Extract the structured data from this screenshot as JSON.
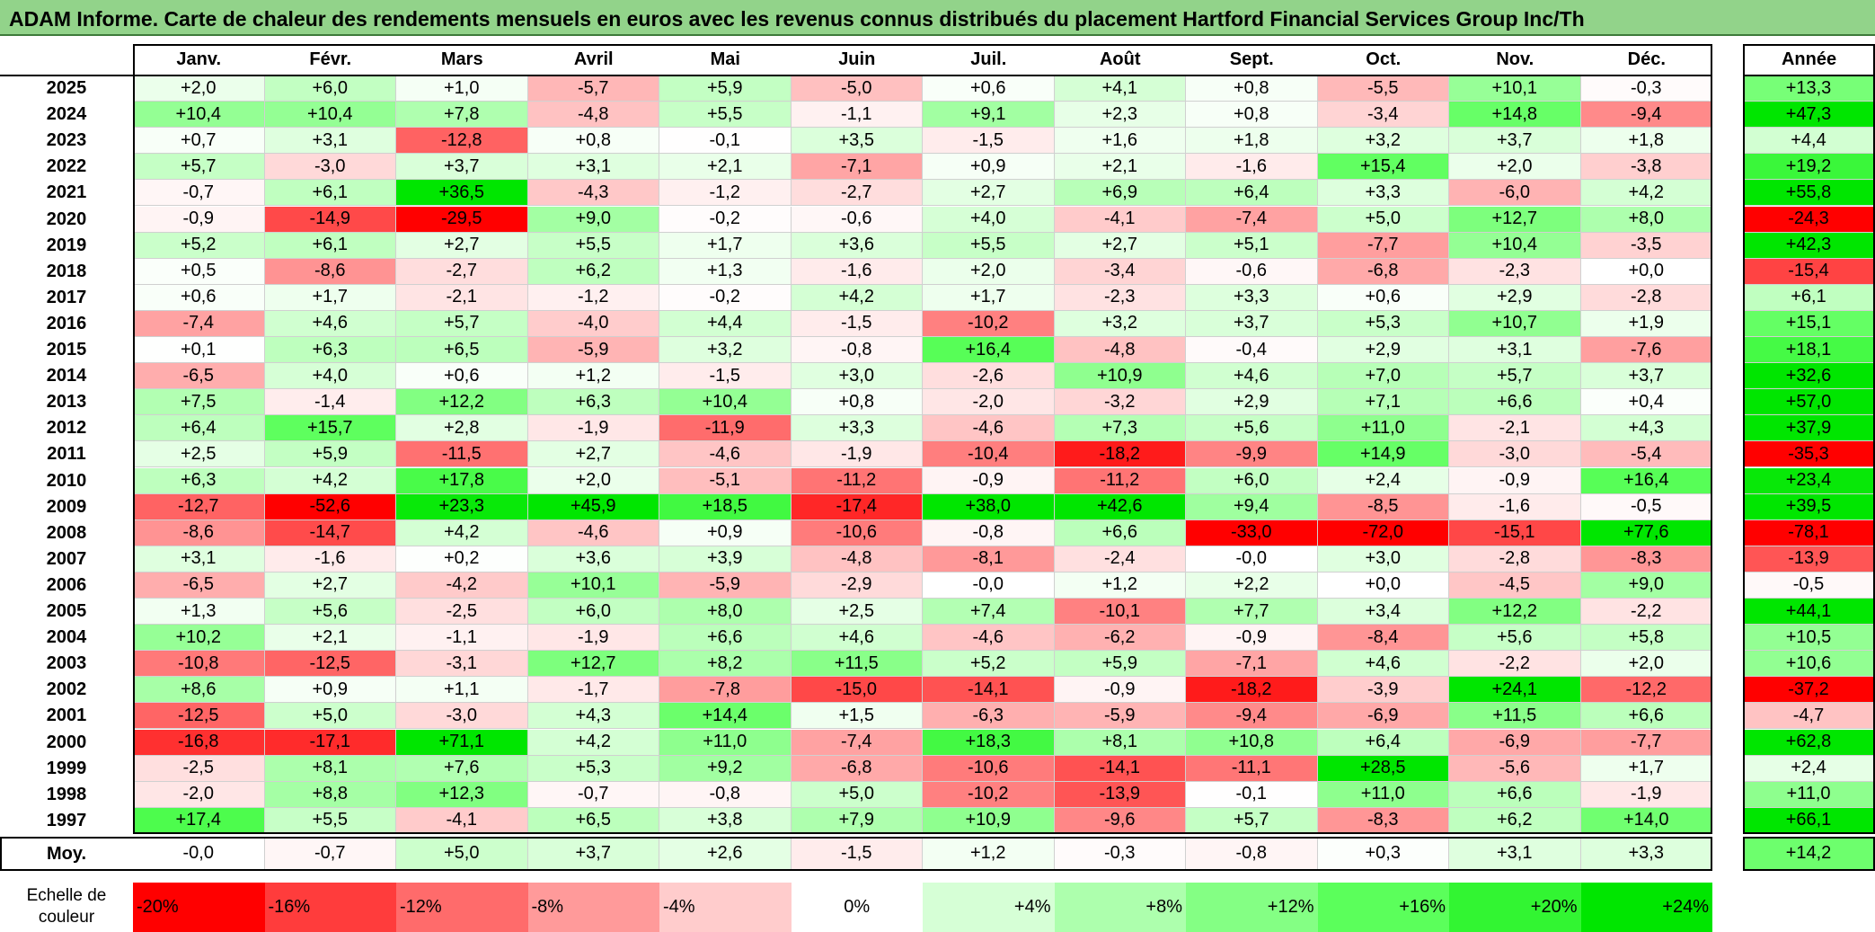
{
  "title": "ADAM Informe. Carte de chaleur des rendements mensuels en euros avec les revenus connus distribués du placement Hartford Financial Services Group Inc/Th",
  "chart_data": {
    "type": "heatmap",
    "title": "ADAM Informe. Carte de chaleur des rendements mensuels en euros avec les revenus connus distribués du placement Hartford Financial Services Group Inc/Th",
    "columns": [
      "Janv.",
      "Févr.",
      "Mars",
      "Avril",
      "Mai",
      "Juin",
      "Juil.",
      "Août",
      "Sept.",
      "Oct.",
      "Nov.",
      "Déc."
    ],
    "year_column_label": "Année",
    "rows": [
      {
        "year": "2025",
        "values": [
          "+2,0",
          "+6,0",
          "+1,0",
          "-5,7",
          "+5,9",
          "-5,0",
          "+0,6",
          "+4,1",
          "+0,8",
          "-5,5",
          "+10,1",
          "-0,3"
        ],
        "annual": "+13,3"
      },
      {
        "year": "2024",
        "values": [
          "+10,4",
          "+10,4",
          "+7,8",
          "-4,8",
          "+5,5",
          "-1,1",
          "+9,1",
          "+2,3",
          "+0,8",
          "-3,4",
          "+14,8",
          "-9,4"
        ],
        "annual": "+47,3"
      },
      {
        "year": "2023",
        "values": [
          "+0,7",
          "+3,1",
          "-12,8",
          "+0,8",
          "-0,1",
          "+3,5",
          "-1,5",
          "+1,6",
          "+1,8",
          "+3,2",
          "+3,7",
          "+1,8"
        ],
        "annual": "+4,4"
      },
      {
        "year": "2022",
        "values": [
          "+5,7",
          "-3,0",
          "+3,7",
          "+3,1",
          "+2,1",
          "-7,1",
          "+0,9",
          "+2,1",
          "-1,6",
          "+15,4",
          "+2,0",
          "-3,8"
        ],
        "annual": "+19,2"
      },
      {
        "year": "2021",
        "values": [
          "-0,7",
          "+6,1",
          "+36,5",
          "-4,3",
          "-1,2",
          "-2,7",
          "+2,7",
          "+6,9",
          "+6,4",
          "+3,3",
          "-6,0",
          "+4,2"
        ],
        "annual": "+55,8"
      },
      {
        "year": "2020",
        "values": [
          "-0,9",
          "-14,9",
          "-29,5",
          "+9,0",
          "-0,2",
          "-0,6",
          "+4,0",
          "-4,1",
          "-7,4",
          "+5,0",
          "+12,7",
          "+8,0"
        ],
        "annual": "-24,3"
      },
      {
        "year": "2019",
        "values": [
          "+5,2",
          "+6,1",
          "+2,7",
          "+5,5",
          "+1,7",
          "+3,6",
          "+5,5",
          "+2,7",
          "+5,1",
          "-7,7",
          "+10,4",
          "-3,5"
        ],
        "annual": "+42,3"
      },
      {
        "year": "2018",
        "values": [
          "+0,5",
          "-8,6",
          "-2,7",
          "+6,2",
          "+1,3",
          "-1,6",
          "+2,0",
          "-3,4",
          "-0,6",
          "-6,8",
          "-2,3",
          "+0,0"
        ],
        "annual": "-15,4"
      },
      {
        "year": "2017",
        "values": [
          "+0,6",
          "+1,7",
          "-2,1",
          "-1,2",
          "-0,2",
          "+4,2",
          "+1,7",
          "-2,3",
          "+3,3",
          "+0,6",
          "+2,9",
          "-2,8"
        ],
        "annual": "+6,1"
      },
      {
        "year": "2016",
        "values": [
          "-7,4",
          "+4,6",
          "+5,7",
          "-4,0",
          "+4,4",
          "-1,5",
          "-10,2",
          "+3,2",
          "+3,7",
          "+5,3",
          "+10,7",
          "+1,9"
        ],
        "annual": "+15,1"
      },
      {
        "year": "2015",
        "values": [
          "+0,1",
          "+6,3",
          "+6,5",
          "-5,9",
          "+3,2",
          "-0,8",
          "+16,4",
          "-4,8",
          "-0,4",
          "+2,9",
          "+3,1",
          "-7,6"
        ],
        "annual": "+18,1"
      },
      {
        "year": "2014",
        "values": [
          "-6,5",
          "+4,0",
          "+0,6",
          "+1,2",
          "-1,5",
          "+3,0",
          "-2,6",
          "+10,9",
          "+4,6",
          "+7,0",
          "+5,7",
          "+3,7"
        ],
        "annual": "+32,6"
      },
      {
        "year": "2013",
        "values": [
          "+7,5",
          "-1,4",
          "+12,2",
          "+6,3",
          "+10,4",
          "+0,8",
          "-2,0",
          "-3,2",
          "+2,9",
          "+7,1",
          "+6,6",
          "+0,4"
        ],
        "annual": "+57,0"
      },
      {
        "year": "2012",
        "values": [
          "+6,4",
          "+15,7",
          "+2,8",
          "-1,9",
          "-11,9",
          "+3,3",
          "-4,6",
          "+7,3",
          "+5,6",
          "+11,0",
          "-2,1",
          "+4,3"
        ],
        "annual": "+37,9"
      },
      {
        "year": "2011",
        "values": [
          "+2,5",
          "+5,9",
          "-11,5",
          "+2,7",
          "-4,6",
          "-1,9",
          "-10,4",
          "-18,2",
          "-9,9",
          "+14,9",
          "-3,0",
          "-5,4"
        ],
        "annual": "-35,3"
      },
      {
        "year": "2010",
        "values": [
          "+6,3",
          "+4,2",
          "+17,8",
          "+2,0",
          "-5,1",
          "-11,2",
          "-0,9",
          "-11,2",
          "+6,0",
          "+2,4",
          "-0,9",
          "+16,4"
        ],
        "annual": "+23,4"
      },
      {
        "year": "2009",
        "values": [
          "-12,7",
          "-52,6",
          "+23,3",
          "+45,9",
          "+18,5",
          "-17,4",
          "+38,0",
          "+42,6",
          "+9,4",
          "-8,5",
          "-1,6",
          "-0,5"
        ],
        "annual": "+39,5"
      },
      {
        "year": "2008",
        "values": [
          "-8,6",
          "-14,7",
          "+4,2",
          "-4,6",
          "+0,9",
          "-10,6",
          "-0,8",
          "+6,6",
          "-33,0",
          "-72,0",
          "-15,1",
          "+77,6"
        ],
        "annual": "-78,1"
      },
      {
        "year": "2007",
        "values": [
          "+3,1",
          "-1,6",
          "+0,2",
          "+3,6",
          "+3,9",
          "-4,8",
          "-8,1",
          "-2,4",
          "-0,0",
          "+3,0",
          "-2,8",
          "-8,3"
        ],
        "annual": "-13,9"
      },
      {
        "year": "2006",
        "values": [
          "-6,5",
          "+2,7",
          "-4,2",
          "+10,1",
          "-5,9",
          "-2,9",
          "-0,0",
          "+1,2",
          "+2,2",
          "+0,0",
          "-4,5",
          "+9,0"
        ],
        "annual": "-0,5"
      },
      {
        "year": "2005",
        "values": [
          "+1,3",
          "+5,6",
          "-2,5",
          "+6,0",
          "+8,0",
          "+2,5",
          "+7,4",
          "-10,1",
          "+7,7",
          "+3,4",
          "+12,2",
          "-2,2"
        ],
        "annual": "+44,1"
      },
      {
        "year": "2004",
        "values": [
          "+10,2",
          "+2,1",
          "-1,1",
          "-1,9",
          "+6,6",
          "+4,6",
          "-4,6",
          "-6,2",
          "-0,9",
          "-8,4",
          "+5,6",
          "+5,8"
        ],
        "annual": "+10,5"
      },
      {
        "year": "2003",
        "values": [
          "-10,8",
          "-12,5",
          "-3,1",
          "+12,7",
          "+8,2",
          "+11,5",
          "+5,2",
          "+5,9",
          "-7,1",
          "+4,6",
          "-2,2",
          "+2,0"
        ],
        "annual": "+10,6"
      },
      {
        "year": "2002",
        "values": [
          "+8,6",
          "+0,9",
          "+1,1",
          "-1,7",
          "-7,8",
          "-15,0",
          "-14,1",
          "-0,9",
          "-18,2",
          "-3,9",
          "+24,1",
          "-12,2"
        ],
        "annual": "-37,2"
      },
      {
        "year": "2001",
        "values": [
          "-12,5",
          "+5,0",
          "-3,0",
          "+4,3",
          "+14,4",
          "+1,5",
          "-6,3",
          "-5,9",
          "-9,4",
          "-6,9",
          "+11,5",
          "+6,6"
        ],
        "annual": "-4,7"
      },
      {
        "year": "2000",
        "values": [
          "-16,8",
          "-17,1",
          "+71,1",
          "+4,2",
          "+11,0",
          "-7,4",
          "+18,3",
          "+8,1",
          "+10,8",
          "+6,4",
          "-6,9",
          "-7,7"
        ],
        "annual": "+62,8"
      },
      {
        "year": "1999",
        "values": [
          "-2,5",
          "+8,1",
          "+7,6",
          "+5,3",
          "+9,2",
          "-6,8",
          "-10,6",
          "-14,1",
          "-11,1",
          "+28,5",
          "-5,6",
          "+1,7"
        ],
        "annual": "+2,4"
      },
      {
        "year": "1998",
        "values": [
          "-2,0",
          "+8,8",
          "+12,3",
          "-0,7",
          "-0,8",
          "+5,0",
          "-10,2",
          "-13,9",
          "-0,1",
          "+11,0",
          "+6,6",
          "-1,9"
        ],
        "annual": "+11,0"
      },
      {
        "year": "1997",
        "values": [
          "+17,4",
          "+5,5",
          "-4,1",
          "+6,5",
          "+3,8",
          "+7,9",
          "+10,9",
          "-9,6",
          "+5,7",
          "-8,3",
          "+6,2",
          "+14,0"
        ],
        "annual": "+66,1"
      }
    ],
    "average": {
      "label": "Moy.",
      "values": [
        "-0,0",
        "-0,7",
        "+5,0",
        "+3,7",
        "+2,6",
        "-1,5",
        "+1,2",
        "-0,3",
        "-0,8",
        "+0,3",
        "+3,1",
        "+3,3"
      ],
      "annual": "+14,2"
    },
    "color_scale": {
      "label": "Echelle de couleur",
      "stops": [
        {
          "label": "-20%",
          "value": -20,
          "color": "#ff0000"
        },
        {
          "label": "-16%",
          "value": -16,
          "color": "#ff3c3c"
        },
        {
          "label": "-12%",
          "value": -12,
          "color": "#ff6b6b"
        },
        {
          "label": "-8%",
          "value": -8,
          "color": "#ff9a9a"
        },
        {
          "label": "-4%",
          "value": -4,
          "color": "#ffcccc"
        },
        {
          "label": "0%",
          "value": 0,
          "color": "#ffffff"
        },
        {
          "label": "+4%",
          "value": 4,
          "color": "#d6ffd6"
        },
        {
          "label": "+8%",
          "value": 8,
          "color": "#adffad"
        },
        {
          "label": "+12%",
          "value": 12,
          "color": "#84ff84"
        },
        {
          "label": "+16%",
          "value": 16,
          "color": "#5bff5b"
        },
        {
          "label": "+20%",
          "value": 20,
          "color": "#32f532"
        },
        {
          "label": "+24%",
          "value": 24,
          "color": "#00e600"
        }
      ]
    }
  }
}
